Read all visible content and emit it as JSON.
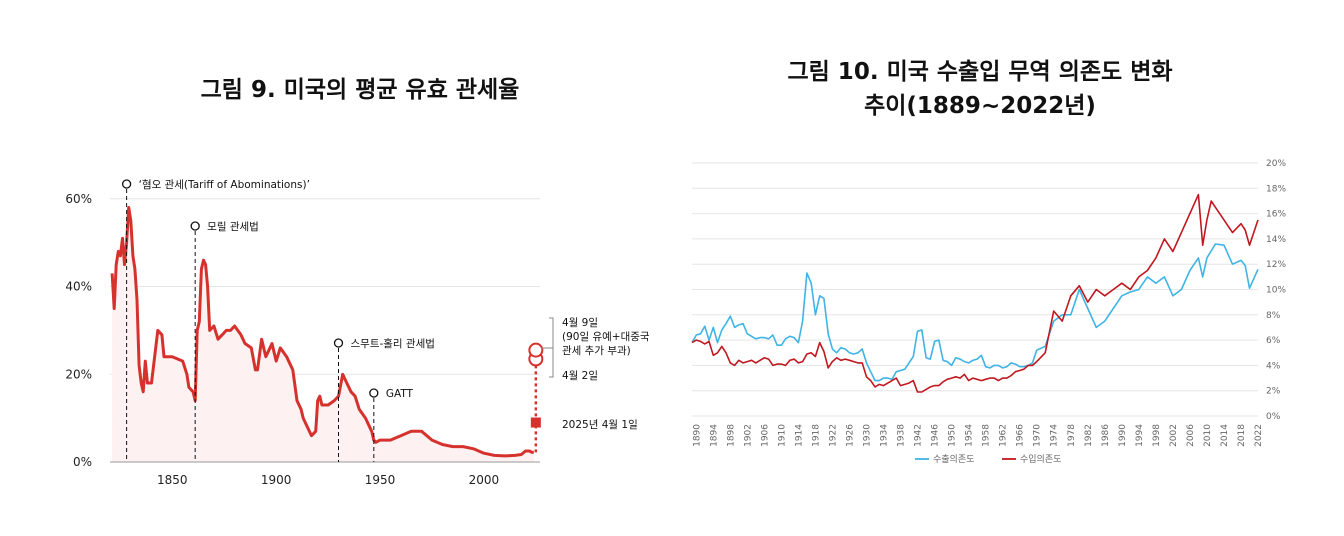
{
  "left_chart_title": "그림 9. 미국의 평균 유효 관세율",
  "right_chart_title_line1": "그림 10. 미국 수출입 무역 의존도 변화",
  "right_chart_title_line2": "추이(1889~2022년)",
  "colors": {
    "tariff_line": "#d6322d",
    "tariff_fill": "#fdf1f2",
    "export": "#3fb4e5",
    "import": "#c0181f",
    "grid": "#e6e6e6"
  },
  "chart_data": [
    {
      "type": "line",
      "title": "그림 9. 미국의 평균 유효 관세율",
      "xlabel": "",
      "ylabel": "",
      "xlim": [
        1820,
        2027
      ],
      "ylim": [
        0,
        0.62
      ],
      "y_ticks": [
        "0%",
        "20%",
        "40%",
        "60%"
      ],
      "y_tick_values": [
        0,
        0.2,
        0.4,
        0.6
      ],
      "x_ticks": [
        "1850",
        "1900",
        "1950",
        "2000"
      ],
      "x_tick_values": [
        1850,
        1900,
        1950,
        2000
      ],
      "series": [
        {
          "name": "평균 유효 관세율",
          "x": [
            1821,
            1822,
            1823,
            1824,
            1825,
            1826,
            1827,
            1828,
            1829,
            1830,
            1831,
            1832,
            1833,
            1834,
            1835,
            1836,
            1837,
            1838,
            1840,
            1842,
            1843,
            1845,
            1846,
            1847,
            1850,
            1855,
            1857,
            1858,
            1860,
            1861,
            1862,
            1863,
            1864,
            1865,
            1866,
            1867,
            1868,
            1870,
            1872,
            1874,
            1876,
            1878,
            1880,
            1883,
            1885,
            1888,
            1890,
            1891,
            1893,
            1895,
            1896,
            1898,
            1900,
            1902,
            1905,
            1908,
            1910,
            1912,
            1913,
            1915,
            1917,
            1919,
            1920,
            1921,
            1922,
            1925,
            1928,
            1930,
            1932,
            1933,
            1934,
            1936,
            1938,
            1940,
            1943,
            1946,
            1947,
            1948,
            1950,
            1955,
            1960,
            1965,
            1970,
            1975,
            1980,
            1985,
            1990,
            1995,
            2000,
            2005,
            2010,
            2015,
            2018,
            2020,
            2022,
            2023,
            2024
          ],
          "y": [
            0.43,
            0.35,
            0.45,
            0.48,
            0.47,
            0.51,
            0.45,
            0.5,
            0.58,
            0.55,
            0.47,
            0.44,
            0.37,
            0.22,
            0.18,
            0.16,
            0.23,
            0.18,
            0.18,
            0.26,
            0.3,
            0.29,
            0.24,
            0.24,
            0.24,
            0.23,
            0.2,
            0.17,
            0.16,
            0.14,
            0.3,
            0.32,
            0.44,
            0.46,
            0.45,
            0.4,
            0.3,
            0.31,
            0.28,
            0.29,
            0.3,
            0.3,
            0.31,
            0.29,
            0.27,
            0.26,
            0.21,
            0.21,
            0.28,
            0.24,
            0.25,
            0.27,
            0.23,
            0.26,
            0.24,
            0.21,
            0.14,
            0.12,
            0.1,
            0.08,
            0.06,
            0.07,
            0.14,
            0.15,
            0.13,
            0.13,
            0.14,
            0.15,
            0.2,
            0.19,
            0.18,
            0.16,
            0.15,
            0.12,
            0.1,
            0.07,
            0.05,
            0.045,
            0.05,
            0.05,
            0.06,
            0.07,
            0.07,
            0.05,
            0.04,
            0.035,
            0.035,
            0.03,
            0.02,
            0.015,
            0.014,
            0.015,
            0.017,
            0.025,
            0.025,
            0.022,
            0.022
          ]
        }
      ],
      "projection": {
        "from_year": 2025,
        "from_value": 0.022,
        "to_value": 0.225
      },
      "points": [
        {
          "year": 2025,
          "value": 0.09,
          "label": "2025년 4월 1일",
          "marker": "square"
        },
        {
          "year": 2025,
          "value": 0.235,
          "label": "4월 2일",
          "marker": "circle"
        },
        {
          "year": 2025,
          "value": 0.255,
          "label": "4월 9일 (90일 유예+대중국 관세 추가 부과)",
          "marker": "circle"
        }
      ],
      "annotations": [
        {
          "year": 1828,
          "label": "‘혐오 관세(Tariff of Abominations)’"
        },
        {
          "year": 1861,
          "label": "모릴 관세법"
        },
        {
          "year": 1930,
          "label": "스무트-홀리 관세법"
        },
        {
          "year": 1947,
          "label": "GATT"
        }
      ]
    },
    {
      "type": "line",
      "title": "그림 10. 미국 수출입 무역 의존도 변화 추이(1889~2022년)",
      "xlabel": "",
      "ylabel": "",
      "ylim": [
        0,
        20
      ],
      "y_ticks": [
        "0%",
        "2%",
        "4%",
        "6%",
        "8%",
        "10%",
        "12%",
        "14%",
        "16%",
        "18%",
        "20%"
      ],
      "y_tick_values": [
        0,
        2,
        4,
        6,
        8,
        10,
        12,
        14,
        16,
        18,
        20
      ],
      "x_ticks": [
        "1890",
        "1894",
        "1898",
        "1902",
        "1906",
        "1910",
        "1914",
        "1918",
        "1922",
        "1926",
        "1930",
        "1934",
        "1938",
        "1942",
        "1946",
        "1950",
        "1954",
        "1958",
        "1962",
        "1966",
        "1970",
        "1974",
        "1978",
        "1982",
        "1986",
        "1990",
        "1994",
        "1998",
        "2002",
        "2006",
        "2010",
        "2014",
        "2018",
        "2022"
      ],
      "x_tick_values": [
        1890,
        1894,
        1898,
        1902,
        1906,
        1910,
        1914,
        1918,
        1922,
        1926,
        1930,
        1934,
        1938,
        1942,
        1946,
        1950,
        1954,
        1958,
        1962,
        1966,
        1970,
        1974,
        1978,
        1982,
        1986,
        1990,
        1994,
        1998,
        2002,
        2006,
        2010,
        2014,
        2018,
        2022
      ],
      "legend": {
        "position": "bottom"
      },
      "series": [
        {
          "name": "수출의존도",
          "color": "#3fb4e5",
          "x": [
            1889,
            1890,
            1891,
            1892,
            1893,
            1894,
            1895,
            1896,
            1897,
            1898,
            1899,
            1900,
            1901,
            1902,
            1903,
            1904,
            1905,
            1906,
            1907,
            1908,
            1909,
            1910,
            1911,
            1912,
            1913,
            1914,
            1915,
            1916,
            1917,
            1918,
            1919,
            1920,
            1921,
            1922,
            1923,
            1924,
            1925,
            1926,
            1927,
            1928,
            1929,
            1930,
            1931,
            1932,
            1933,
            1934,
            1935,
            1936,
            1937,
            1938,
            1939,
            1940,
            1941,
            1942,
            1943,
            1944,
            1945,
            1946,
            1947,
            1948,
            1949,
            1950,
            1951,
            1952,
            1953,
            1954,
            1955,
            1956,
            1957,
            1958,
            1959,
            1960,
            1961,
            1962,
            1963,
            1964,
            1965,
            1966,
            1967,
            1968,
            1969,
            1970,
            1972,
            1974,
            1976,
            1978,
            1980,
            1982,
            1984,
            1986,
            1988,
            1990,
            1992,
            1994,
            1996,
            1998,
            2000,
            2002,
            2004,
            2006,
            2008,
            2009,
            2010,
            2012,
            2014,
            2016,
            2018,
            2019,
            2020,
            2022
          ],
          "y": [
            5.8,
            6.4,
            6.5,
            7.1,
            6.0,
            7.0,
            5.8,
            6.8,
            7.3,
            7.9,
            7.0,
            7.2,
            7.3,
            6.5,
            6.3,
            6.1,
            6.2,
            6.2,
            6.1,
            6.4,
            5.6,
            5.6,
            6.1,
            6.3,
            6.2,
            5.8,
            7.5,
            11.3,
            10.5,
            8.0,
            9.5,
            9.3,
            6.5,
            5.3,
            5.0,
            5.4,
            5.3,
            5.0,
            4.9,
            5.0,
            5.3,
            4.2,
            3.5,
            2.8,
            2.8,
            3.0,
            3.0,
            2.9,
            3.5,
            3.6,
            3.7,
            4.2,
            4.7,
            6.7,
            6.8,
            4.6,
            4.5,
            5.9,
            6.0,
            4.4,
            4.3,
            4.0,
            4.6,
            4.5,
            4.3,
            4.2,
            4.4,
            4.5,
            4.8,
            3.9,
            3.8,
            4.0,
            4.0,
            3.8,
            3.9,
            4.2,
            4.1,
            3.9,
            3.9,
            4.0,
            4.2,
            5.2,
            5.5,
            7.5,
            8.0,
            8.0,
            10.0,
            8.5,
            7.0,
            7.5,
            8.5,
            9.5,
            9.8,
            10.0,
            11.0,
            10.5,
            11.0,
            9.5,
            10.0,
            11.5,
            12.5,
            11.0,
            12.5,
            13.6,
            13.5,
            12.0,
            12.3,
            11.9,
            10.1,
            11.6
          ]
        },
        {
          "name": "수입의존도",
          "color": "#c0181f",
          "x": [
            1889,
            1890,
            1891,
            1892,
            1893,
            1894,
            1895,
            1896,
            1897,
            1898,
            1899,
            1900,
            1901,
            1902,
            1903,
            1904,
            1905,
            1906,
            1907,
            1908,
            1909,
            1910,
            1911,
            1912,
            1913,
            1914,
            1915,
            1916,
            1917,
            1918,
            1919,
            1920,
            1921,
            1922,
            1923,
            1924,
            1925,
            1926,
            1927,
            1928,
            1929,
            1930,
            1931,
            1932,
            1933,
            1934,
            1935,
            1936,
            1937,
            1938,
            1939,
            1940,
            1941,
            1942,
            1943,
            1944,
            1945,
            1946,
            1947,
            1948,
            1949,
            1950,
            1951,
            1952,
            1953,
            1954,
            1955,
            1956,
            1957,
            1958,
            1959,
            1960,
            1961,
            1962,
            1963,
            1964,
            1965,
            1966,
            1967,
            1968,
            1969,
            1970,
            1972,
            1974,
            1976,
            1978,
            1980,
            1982,
            1984,
            1986,
            1988,
            1990,
            1992,
            1994,
            1996,
            1998,
            2000,
            2002,
            2004,
            2006,
            2008,
            2009,
            2010,
            2011,
            2012,
            2014,
            2016,
            2018,
            2019,
            2020,
            2022
          ],
          "y": [
            5.8,
            6.0,
            5.9,
            5.7,
            5.9,
            4.8,
            5.0,
            5.5,
            5.0,
            4.2,
            4.0,
            4.4,
            4.2,
            4.3,
            4.4,
            4.2,
            4.4,
            4.6,
            4.5,
            4.0,
            4.1,
            4.1,
            4.0,
            4.4,
            4.5,
            4.2,
            4.3,
            4.9,
            5.0,
            4.7,
            5.8,
            5.1,
            3.8,
            4.3,
            4.6,
            4.4,
            4.5,
            4.4,
            4.3,
            4.2,
            4.2,
            3.1,
            2.8,
            2.3,
            2.5,
            2.4,
            2.6,
            2.8,
            3.0,
            2.4,
            2.5,
            2.6,
            2.8,
            1.9,
            1.9,
            2.1,
            2.3,
            2.4,
            2.4,
            2.7,
            2.9,
            3.0,
            3.1,
            3.0,
            3.3,
            2.8,
            3.0,
            2.9,
            2.8,
            2.9,
            3.0,
            3.0,
            2.8,
            3.0,
            3.0,
            3.2,
            3.5,
            3.6,
            3.7,
            4.0,
            4.0,
            4.3,
            5.0,
            8.3,
            7.5,
            9.5,
            10.3,
            9.0,
            10.0,
            9.5,
            10.0,
            10.5,
            10.0,
            11.0,
            11.5,
            12.5,
            14.0,
            13.0,
            14.5,
            16.0,
            17.5,
            13.5,
            15.5,
            17.0,
            16.5,
            15.5,
            14.5,
            15.2,
            14.7,
            13.5,
            15.5
          ]
        }
      ]
    }
  ]
}
